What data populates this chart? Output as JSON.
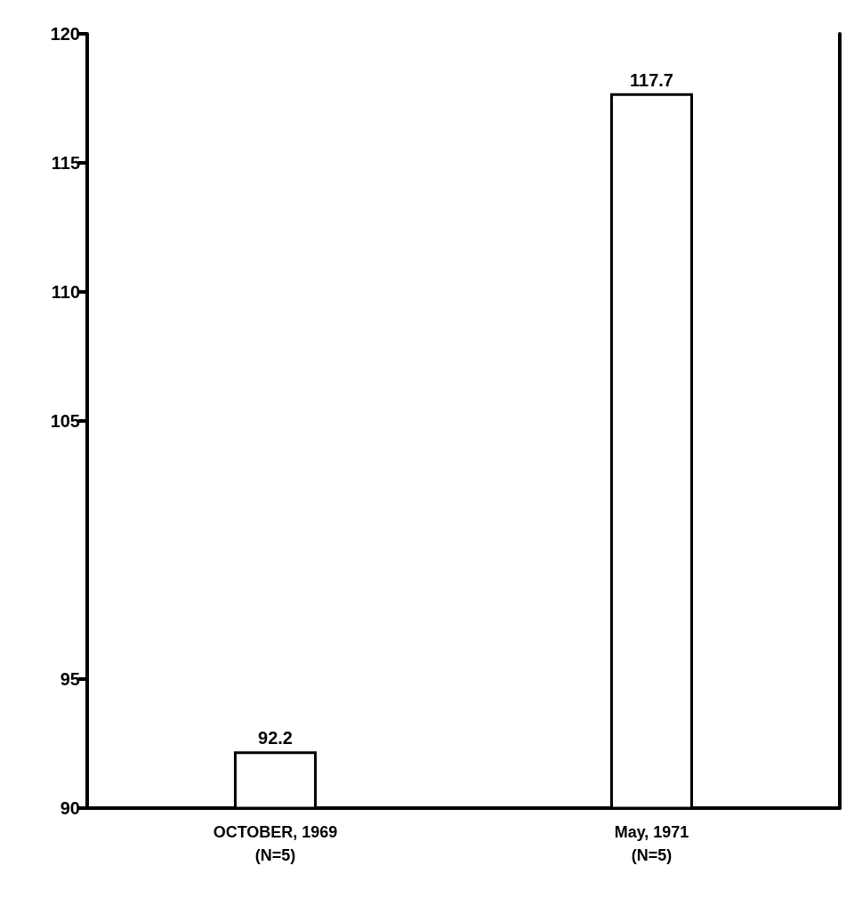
{
  "chart_data": {
    "type": "bar",
    "categories": [
      "OCTOBER, 1969\n(N=5)",
      "May, 1971\n(N=5)"
    ],
    "values": [
      92.2,
      117.7
    ],
    "color": "#ffffff",
    "data_labels": true,
    "grid": false,
    "ylim": [
      90,
      120
    ],
    "yticks": [
      90,
      95,
      105,
      110,
      115,
      120
    ]
  }
}
